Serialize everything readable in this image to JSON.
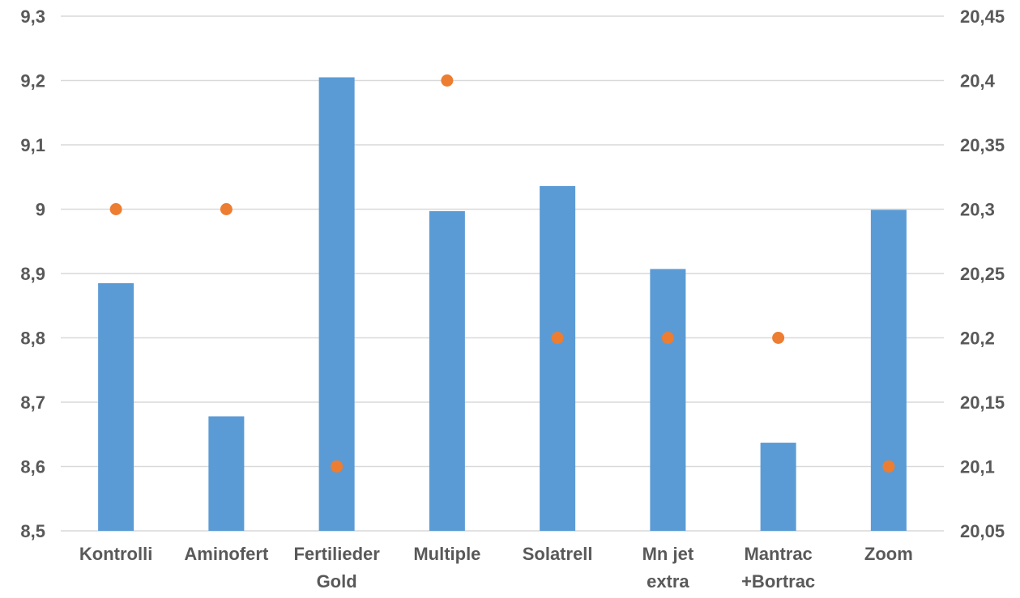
{
  "chart_data": {
    "type": "bar",
    "categories": [
      "Kontrolli",
      "Aminofert",
      "Fertilieder Gold",
      "Multiple",
      "Solatrell",
      "Mn jet extra",
      "Mantrac +Bortrac",
      "Zoom"
    ],
    "category_lines": [
      [
        "Kontrolli"
      ],
      [
        "Aminofert"
      ],
      [
        "Fertilieder",
        "Gold"
      ],
      [
        "Multiple"
      ],
      [
        "Solatrell"
      ],
      [
        "Mn jet",
        "extra"
      ],
      [
        "Mantrac",
        "+Bortrac"
      ],
      [
        "Zoom"
      ]
    ],
    "series": [
      {
        "type": "bar",
        "axis": "left",
        "color": "#5B9BD5",
        "values": [
          8.885,
          8.678,
          9.205,
          8.997,
          9.036,
          8.907,
          8.637,
          8.999
        ]
      },
      {
        "type": "scatter",
        "axis": "right",
        "color": "#ED7D31",
        "values": [
          20.3,
          20.3,
          20.1,
          20.4,
          20.2,
          20.2,
          20.2,
          20.1
        ]
      }
    ],
    "left_axis": {
      "min": 8.5,
      "max": 9.3,
      "ticks": [
        "8,5",
        "8,6",
        "8,7",
        "8,8",
        "8,9",
        "9",
        "9,1",
        "9,2",
        "9,3"
      ]
    },
    "right_axis": {
      "min": 20.05,
      "max": 20.45,
      "ticks": [
        "20,05",
        "20,1",
        "20,15",
        "20,2",
        "20,25",
        "20,3",
        "20,35",
        "20,4",
        "20,45"
      ]
    },
    "grid": true,
    "legend": "none",
    "title": "",
    "xlabel": "",
    "ylabel": ""
  }
}
